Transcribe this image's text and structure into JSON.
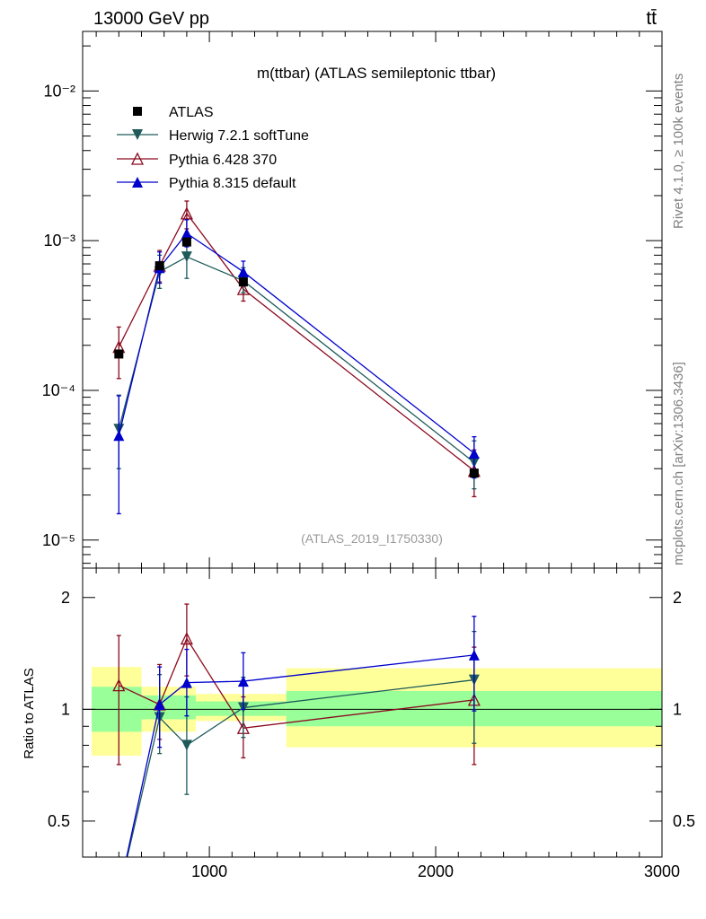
{
  "header": {
    "energy_label": "13000 GeV pp",
    "process_label": "tt̄"
  },
  "side": {
    "rivet_label": "Rivet 4.1.0, ≥ 100k events",
    "mcplots_label": "mcplots.cern.ch [arXiv:1306.3436]"
  },
  "colors": {
    "atlas": "#000000",
    "herwig": "#1e5a5a",
    "pythia6": "#8b0a1e",
    "pythia8": "#0000cc",
    "band_inner": "#99ff99",
    "band_outer": "#ffff99"
  },
  "chart_data": [
    {
      "type": "line",
      "title": "m(ttbar) (ATLAS semileptonic ttbar)",
      "analysis_label": "(ATLAS_2019_I1750330)",
      "yscale": "log",
      "xlim": [
        440,
        3000
      ],
      "ylim": [
        6.5e-06,
        0.025
      ],
      "ytick_labels": [
        "10⁻⁵",
        "10⁻⁴",
        "10⁻³",
        "10⁻²"
      ],
      "legend": [
        "ATLAS",
        "Herwig 7.2.1 softTune",
        "Pythia 6.428 370",
        "Pythia 8.315 default"
      ],
      "series": [
        {
          "name": "ATLAS",
          "marker": "square",
          "x": [
            600,
            780,
            900,
            1150,
            2170
          ],
          "y": [
            0.000175,
            0.00068,
            0.00098,
            0.00053,
            2.8e-05
          ]
        },
        {
          "name": "Herwig 7.2.1 softTune",
          "marker": "triangle-down",
          "x": [
            600,
            780,
            900,
            1150,
            2170
          ],
          "y": [
            5.5e-05,
            0.00062,
            0.00078,
            0.00054,
            3.3e-05
          ],
          "err_low": [
            2.5e-05,
            0.00014,
            0.00022,
            9e-05,
            1.1e-05
          ],
          "err_high": [
            3.8e-05,
            0.00018,
            0.00026,
            0.00012,
            1.3e-05
          ]
        },
        {
          "name": "Pythia 6.428 370",
          "marker": "triangle-open",
          "x": [
            600,
            780,
            900,
            1150,
            2170
          ],
          "y": [
            0.000195,
            0.00068,
            0.00152,
            0.000475,
            2.9e-05
          ],
          "err_low": [
            7.5e-05,
            0.00015,
            0.00032,
            8e-05,
            9.5e-06
          ],
          "err_high": [
            7e-05,
            0.00018,
            0.00032,
            9e-05,
            1.1e-05
          ]
        },
        {
          "name": "Pythia 8.315 default",
          "marker": "triangle-up",
          "x": [
            600,
            780,
            900,
            1150,
            2170
          ],
          "y": [
            5e-05,
            0.00066,
            0.00112,
            0.00062,
            3.8e-05
          ],
          "err_low": [
            3.5e-05,
            0.00014,
            0.00021,
            0.0001,
            1.2e-05
          ],
          "err_high": [
            4.2e-05,
            0.00018,
            0.00026,
            0.00011,
            1.1e-05
          ]
        }
      ]
    },
    {
      "type": "line",
      "ylabel": "Ratio to ATLAS",
      "xlabel": "",
      "xlim": [
        440,
        3000
      ],
      "ylim": [
        0.4,
        2.4
      ],
      "xtick_labels": [
        "1000",
        "2000",
        "3000"
      ],
      "ytick_labels": [
        "0.5",
        "1",
        "2"
      ],
      "bands": {
        "bins": [
          [
            480,
            700
          ],
          [
            700,
            940
          ],
          [
            940,
            1340
          ],
          [
            1340,
            3000
          ]
        ],
        "inner": [
          [
            0.87,
            1.15
          ],
          [
            0.94,
            1.09
          ],
          [
            0.96,
            1.05
          ],
          [
            0.9,
            1.12
          ]
        ],
        "outer": [
          [
            0.75,
            1.3
          ],
          [
            0.87,
            1.15
          ],
          [
            0.93,
            1.1
          ],
          [
            0.79,
            1.29
          ]
        ]
      },
      "series": [
        {
          "name": "Herwig 7.2.1 softTune",
          "marker": "triangle-down",
          "x": [
            780,
            900,
            1150,
            2170
          ],
          "y": [
            0.95,
            0.8,
            1.01,
            1.2
          ],
          "err_low": [
            0.19,
            0.21,
            0.17,
            0.39
          ],
          "err_high": [
            0.29,
            0.28,
            0.21,
            0.42
          ],
          "tail": {
            "x": [
              590,
              780
            ],
            "y": [
              0.3,
              0.95
            ]
          }
        },
        {
          "name": "Pythia 6.428 370",
          "marker": "triangle-open",
          "x": [
            600,
            780,
            900,
            1150,
            2170
          ],
          "y": [
            1.16,
            1.03,
            1.55,
            0.89,
            1.06
          ],
          "err_low": [
            0.45,
            0.2,
            0.32,
            0.15,
            0.35
          ],
          "err_high": [
            0.42,
            0.29,
            0.37,
            0.19,
            0.41
          ]
        },
        {
          "name": "Pythia 8.315 default",
          "marker": "triangle-up",
          "x": [
            780,
            900,
            1150,
            2170
          ],
          "y": [
            1.03,
            1.18,
            1.19,
            1.4
          ],
          "err_low": [
            0.24,
            0.22,
            0.19,
            0.41
          ],
          "err_high": [
            0.27,
            0.27,
            0.23,
            0.38
          ],
          "tail": {
            "x": [
              590,
              780
            ],
            "y": [
              0.3,
              1.03
            ]
          }
        }
      ]
    }
  ]
}
